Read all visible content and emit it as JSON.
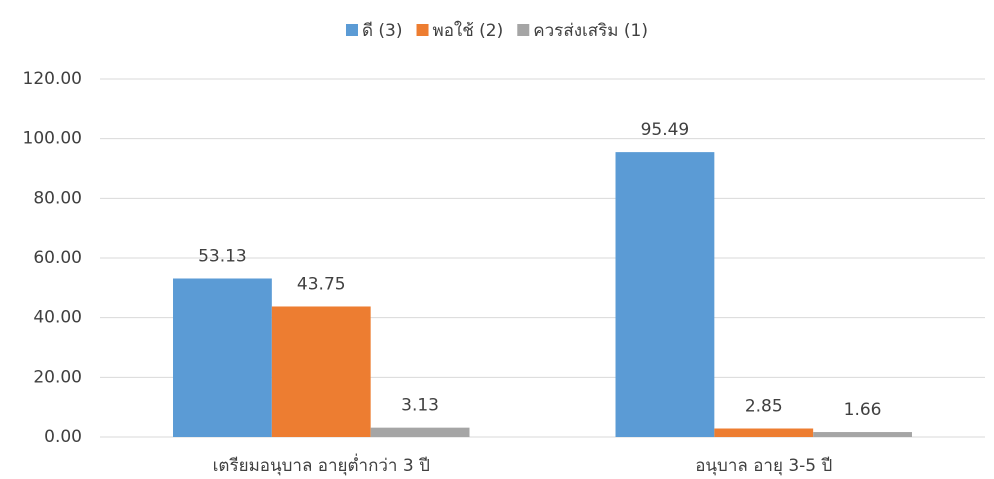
{
  "chart_data": {
    "type": "bar",
    "categories": [
      "เตรียมอนุบาล อายุต่ำกว่า 3 ปี",
      "อนุบาล อายุ 3-5 ปี"
    ],
    "series": [
      {
        "name": "ดี (3)",
        "color": "#5b9bd5",
        "values": [
          53.13,
          95.49
        ]
      },
      {
        "name": "พอใช้ (2)",
        "color": "#ed7d31",
        "values": [
          43.75,
          2.85
        ]
      },
      {
        "name": "ควรส่งเสริม (1)",
        "color": "#a5a5a5",
        "values": [
          3.13,
          1.66
        ]
      }
    ],
    "ylim": [
      0,
      120
    ],
    "yticks": [
      {
        "value": 0,
        "label": "0.00"
      },
      {
        "value": 20,
        "label": "20.00"
      },
      {
        "value": 40,
        "label": "40.00"
      },
      {
        "value": 60,
        "label": "60.00"
      },
      {
        "value": 80,
        "label": "80.00"
      },
      {
        "value": 100,
        "label": "100.00"
      },
      {
        "value": 120,
        "label": "120.00"
      }
    ],
    "grid": true,
    "legend": "top"
  }
}
